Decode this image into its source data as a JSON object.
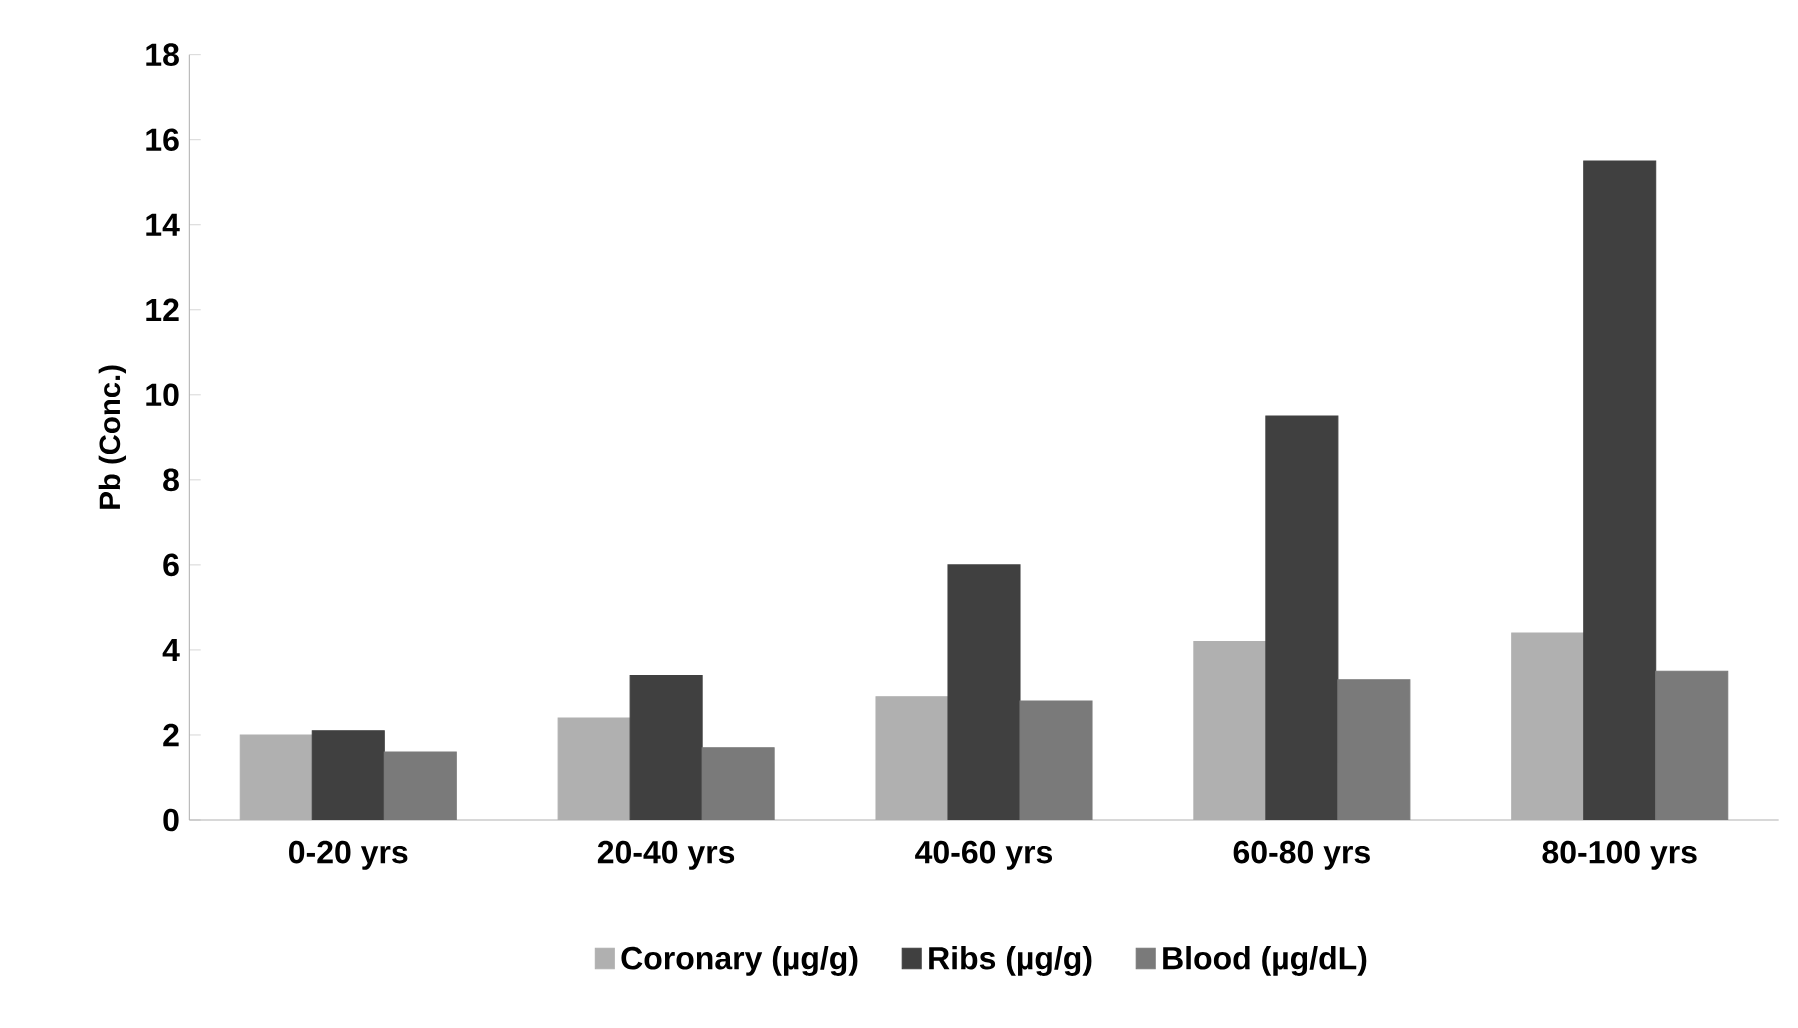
{
  "chart_data": {
    "type": "bar",
    "ylabel": "Pb (Conc.)",
    "categories": [
      "0-20 yrs",
      "20-40 yrs",
      "40-60 yrs",
      "60-80 yrs",
      "80-100 yrs"
    ],
    "series": [
      {
        "name": "Coronary  (µg/g)",
        "color": "#b0b0b0",
        "values": [
          2.0,
          2.4,
          2.9,
          4.2,
          4.4
        ]
      },
      {
        "name": "Ribs   (µg/g)",
        "color": "#404040",
        "values": [
          2.1,
          3.4,
          6.0,
          9.5,
          15.5
        ]
      },
      {
        "name": "Blood (µg/dL)",
        "color": "#7a7a7a",
        "values": [
          1.6,
          1.7,
          2.8,
          3.3,
          3.5
        ]
      }
    ],
    "ylim": [
      0,
      18
    ],
    "yticks": [
      0,
      2,
      4,
      6,
      8,
      10,
      12,
      14,
      16,
      18
    ],
    "grid": false,
    "legend": "bottom"
  }
}
